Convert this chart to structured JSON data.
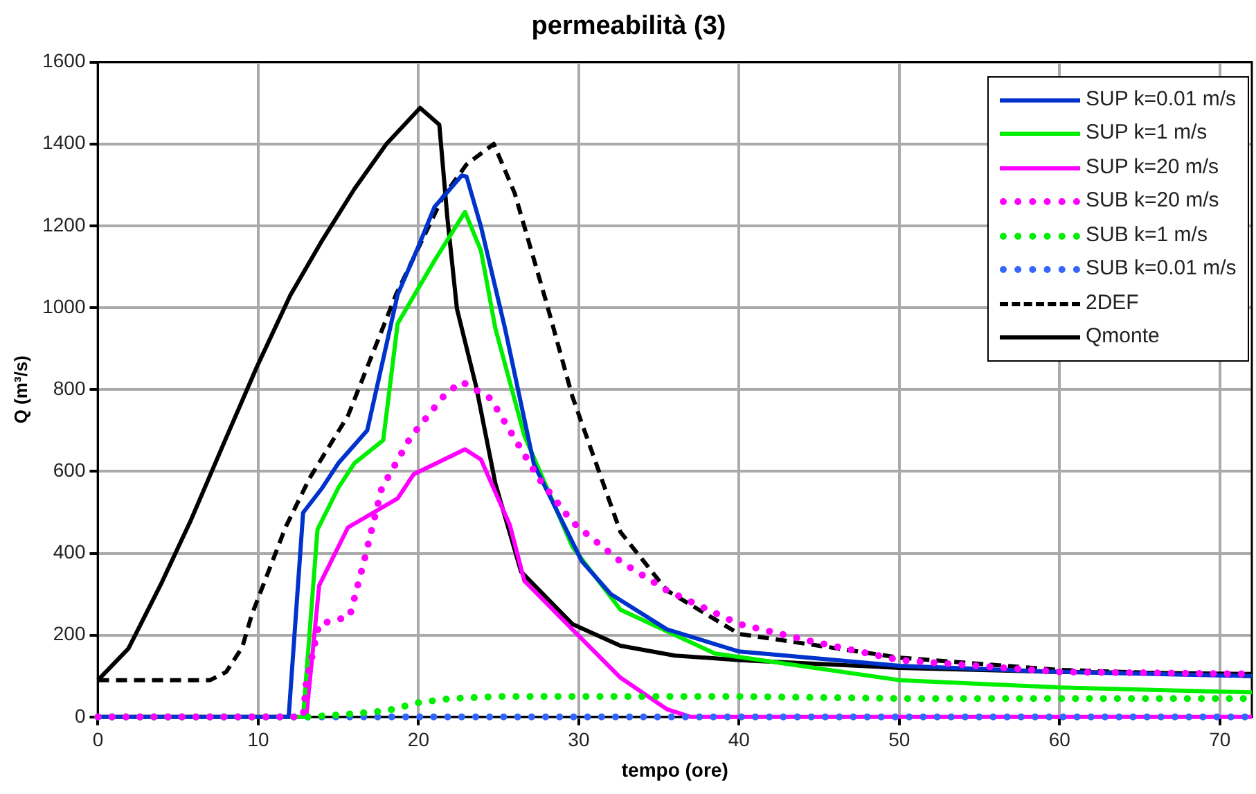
{
  "chart_data": {
    "type": "line",
    "title": "permeabilità (3)",
    "xlabel": "tempo (ore)",
    "ylabel": "Q (m³/s)",
    "xlim": [
      0,
      72
    ],
    "xticks": [
      0,
      10,
      20,
      30,
      40,
      50,
      60,
      70
    ],
    "ylim": [
      0,
      1600
    ],
    "yticks": [
      0,
      200,
      400,
      600,
      800,
      1000,
      1200,
      1400,
      1600
    ],
    "grid": true,
    "legend": "top right",
    "marker": "none",
    "series": [
      {
        "name": "SUP k=0.01 m/s",
        "color": "#0033cc",
        "line_style": "solid",
        "x": [
          0,
          11.9,
          12.8,
          14,
          15,
          16.8,
          18.7,
          20,
          21,
          22.7,
          23,
          23.9,
          25.4,
          27.2,
          30.2,
          32,
          35.5,
          40,
          50,
          60,
          72
        ],
        "values": [
          0,
          0,
          499,
          560,
          620,
          700,
          1032,
          1150,
          1246,
          1323,
          1320,
          1198,
          949,
          618,
          380,
          300,
          214,
          160,
          125,
          110,
          100
        ]
      },
      {
        "name": "SUP k=1 m/s",
        "color": "#00ee00",
        "line_style": "solid",
        "x": [
          0,
          12.8,
          13.7,
          15,
          16,
          17.8,
          18.7,
          21,
          22.9,
          23.9,
          24.8,
          26.6,
          29.6,
          32.6,
          38.5,
          50,
          60,
          72
        ],
        "values": [
          0,
          0,
          458,
          560,
          620,
          676,
          961,
          1115,
          1234,
          1139,
          949,
          688,
          416,
          262,
          155,
          90,
          72,
          60
        ]
      },
      {
        "name": "SUP k=20 m/s",
        "color": "#ff00ff",
        "line_style": "solid",
        "x": [
          0,
          13,
          13.8,
          15.6,
          18.7,
          19.7,
          22.9,
          23.9,
          25.7,
          26.6,
          29.6,
          32.6,
          35.5,
          37,
          72
        ],
        "values": [
          0,
          0,
          321,
          463,
          534,
          593,
          654,
          629,
          469,
          333,
          214,
          96,
          19,
          0,
          0
        ]
      },
      {
        "name": "SUB k=20 m/s",
        "color": "#ff00ff",
        "line_style": "dotted",
        "x": [
          0,
          12.8,
          13,
          13.8,
          15.7,
          16.6,
          17.7,
          19.5,
          21.7,
          22.7,
          24.5,
          25.7,
          27.5,
          29.6,
          32.6,
          35.5,
          40,
          44.5,
          50,
          60,
          72
        ],
        "values": [
          0,
          0,
          85,
          227,
          245,
          380,
          558,
          683,
          790,
          819,
          778,
          700,
          583,
          476,
          380,
          309,
          227,
          185,
          139,
          110,
          105
        ]
      },
      {
        "name": "SUB k=1 m/s",
        "color": "#00ee00",
        "line_style": "dotted",
        "x": [
          0,
          13,
          15,
          18,
          20,
          22,
          25,
          30,
          40,
          50,
          60,
          72
        ],
        "values": [
          0,
          0,
          5,
          15,
          35,
          45,
          50,
          50,
          50,
          45,
          45,
          45
        ]
      },
      {
        "name": "SUB k=0.01 m/s",
        "color": "#3366ff",
        "line_style": "dotted",
        "x": [
          0,
          72
        ],
        "values": [
          0,
          0
        ]
      },
      {
        "name": "2DEF",
        "color": "#000000",
        "line_style": "dashed",
        "x": [
          0,
          7,
          8,
          9,
          9.6,
          11.7,
          13.2,
          15.6,
          18.6,
          21.5,
          23,
          24.7,
          26,
          28,
          29.6,
          32.6,
          35.5,
          40,
          50,
          60,
          72
        ],
        "values": [
          90,
          90,
          110,
          170,
          250,
          463,
          583,
          736,
          1032,
          1269,
          1350,
          1400,
          1280,
          1010,
          783,
          452,
          309,
          203,
          145,
          115,
          100
        ]
      },
      {
        "name": "Qmonte",
        "color": "#000000",
        "line_style": "solid",
        "x": [
          0,
          1.9,
          4,
          5.8,
          8,
          9.9,
          12,
          14,
          16,
          18,
          20.1,
          21.3,
          21.8,
          22.4,
          23.6,
          24.8,
          26.4,
          29.6,
          32.6,
          36,
          40,
          50,
          60,
          72
        ],
        "values": [
          90,
          167,
          330,
          481,
          682,
          854,
          1030,
          1165,
          1290,
          1400,
          1488,
          1447,
          1220,
          997,
          807,
          570,
          355,
          227,
          174,
          150,
          139,
          120,
          110,
          105
        ]
      }
    ]
  }
}
